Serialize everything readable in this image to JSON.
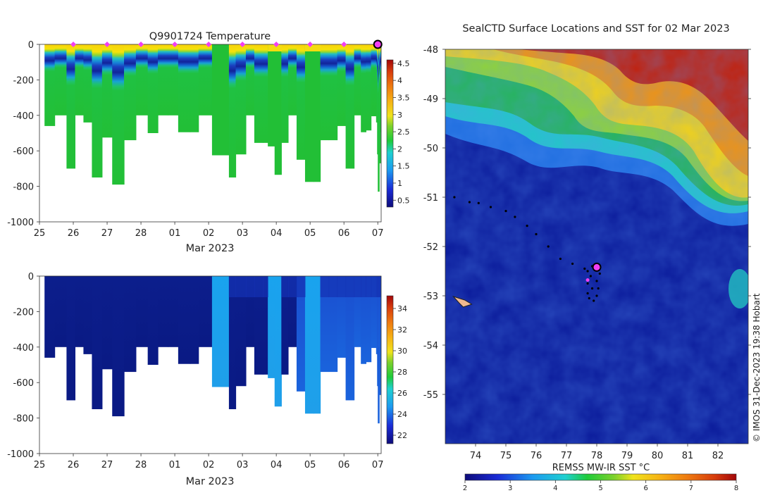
{
  "chart_data": [
    {
      "type": "heatmap",
      "panel": "top-left",
      "title": "Q9901724  Temperature",
      "xlabel": "Mar 2023",
      "ylabel": "",
      "x_tick_labels": [
        "25",
        "26",
        "27",
        "28",
        "01",
        "02",
        "03",
        "04",
        "05",
        "06",
        "07"
      ],
      "x_tick_values": [
        25,
        26,
        27,
        28,
        29,
        30,
        31,
        32,
        33,
        34,
        35
      ],
      "xlim": [
        25,
        35.1
      ],
      "y_tick_values": [
        0,
        -200,
        -400,
        -600,
        -800,
        -1000
      ],
      "ylim": [
        -1000,
        0
      ],
      "colorbar_ticks": [
        "0.5",
        "1",
        "1.5",
        "2",
        "2.5",
        "3",
        "3.5",
        "4",
        "4.5"
      ],
      "colorbar_range": [
        0.3,
        4.6
      ],
      "surface_markers": [
        26,
        27,
        28,
        29,
        30,
        31,
        32,
        33,
        34
      ],
      "latest_marker": 35,
      "profiles": [
        {
          "t": 25.15,
          "depth": 460,
          "type": "cold"
        },
        {
          "t": 25.45,
          "depth": 400,
          "type": "cold"
        },
        {
          "t": 25.8,
          "depth": 700,
          "type": "cold"
        },
        {
          "t": 26.05,
          "depth": 400,
          "type": "cold"
        },
        {
          "t": 26.3,
          "depth": 440,
          "type": "cold"
        },
        {
          "t": 26.55,
          "depth": 750,
          "type": "cold"
        },
        {
          "t": 26.85,
          "depth": 525,
          "type": "cold"
        },
        {
          "t": 27.15,
          "depth": 790,
          "type": "cold"
        },
        {
          "t": 27.5,
          "depth": 540,
          "type": "cold"
        },
        {
          "t": 27.85,
          "depth": 400,
          "type": "cold"
        },
        {
          "t": 28.2,
          "depth": 500,
          "type": "cold"
        },
        {
          "t": 28.5,
          "depth": 400,
          "type": "cold"
        },
        {
          "t": 28.8,
          "depth": 400,
          "type": "cold"
        },
        {
          "t": 29.1,
          "depth": 495,
          "type": "cold"
        },
        {
          "t": 29.45,
          "depth": 495,
          "type": "cold"
        },
        {
          "t": 29.7,
          "depth": 400,
          "type": "cold"
        },
        {
          "t": 30.1,
          "depth": 625,
          "type": "warm"
        },
        {
          "t": 30.4,
          "depth": 625,
          "type": "warm"
        },
        {
          "t": 30.6,
          "depth": 750,
          "type": "cold"
        },
        {
          "t": 30.8,
          "depth": 620,
          "type": "cold"
        },
        {
          "t": 31.1,
          "depth": 400,
          "type": "cold"
        },
        {
          "t": 31.35,
          "depth": 555,
          "type": "cold"
        },
        {
          "t": 31.6,
          "depth": 555,
          "type": "cold"
        },
        {
          "t": 31.75,
          "depth": 575,
          "type": "warm"
        },
        {
          "t": 31.95,
          "depth": 735,
          "type": "warm"
        },
        {
          "t": 32.15,
          "depth": 555,
          "type": "cold"
        },
        {
          "t": 32.35,
          "depth": 400,
          "type": "cold"
        },
        {
          "t": 32.6,
          "depth": 650,
          "type": "cold"
        },
        {
          "t": 32.85,
          "depth": 775,
          "type": "warm"
        },
        {
          "t": 33.1,
          "depth": 775,
          "type": "warm"
        },
        {
          "t": 33.3,
          "depth": 540,
          "type": "cold"
        },
        {
          "t": 33.55,
          "depth": 540,
          "type": "cold"
        },
        {
          "t": 33.8,
          "depth": 460,
          "type": "cold"
        },
        {
          "t": 34.05,
          "depth": 700,
          "type": "cold"
        },
        {
          "t": 34.3,
          "depth": 400,
          "type": "cold"
        },
        {
          "t": 34.5,
          "depth": 495,
          "type": "cold"
        },
        {
          "t": 34.65,
          "depth": 485,
          "type": "cold"
        },
        {
          "t": 34.8,
          "depth": 405,
          "type": "cold"
        },
        {
          "t": 34.95,
          "depth": 440,
          "type": "cold"
        },
        {
          "t": 34.98,
          "depth": 620,
          "type": "cold"
        },
        {
          "t": 35.0,
          "depth": 830,
          "type": "cold"
        },
        {
          "t": 35.02,
          "depth": 400,
          "type": "cold"
        },
        {
          "t": 35.04,
          "depth": 670,
          "type": "cold"
        },
        {
          "t": 35.06,
          "depth": 495,
          "type": "cold"
        }
      ]
    },
    {
      "type": "heatmap",
      "panel": "bottom-left",
      "title": "",
      "xlabel": "Mar 2023",
      "ylabel": "",
      "x_tick_labels": [
        "25",
        "26",
        "27",
        "28",
        "01",
        "02",
        "03",
        "04",
        "05",
        "06",
        "07"
      ],
      "x_tick_values": [
        25,
        26,
        27,
        28,
        29,
        30,
        31,
        32,
        33,
        34,
        35
      ],
      "xlim": [
        25,
        35.1
      ],
      "y_tick_values": [
        0,
        -200,
        -400,
        -600,
        -800,
        -1000
      ],
      "ylim": [
        -1000,
        0
      ],
      "colorbar_ticks": [
        "22",
        "24",
        "26",
        "28",
        "30",
        "32",
        "34"
      ],
      "colorbar_range": [
        21.2,
        35.2
      ]
    },
    {
      "type": "heatmap",
      "panel": "right-map",
      "title": "SealCTD Surface Locations and SST for 02 Mar 2023",
      "xlabel": "REMSS MW-IR SST °C",
      "x_tick_values": [
        74,
        75,
        76,
        77,
        78,
        79,
        80,
        81,
        82
      ],
      "x_tick_labels": [
        "74",
        "75",
        "76",
        "77",
        "78",
        "79",
        "80",
        "81",
        "82"
      ],
      "xlim": [
        73,
        83
      ],
      "y_tick_values": [
        -48,
        -49,
        -50,
        -51,
        -52,
        -53,
        -54,
        -55
      ],
      "y_tick_labels": [
        "-48",
        "-49",
        "-50",
        "-51",
        "-52",
        "-53",
        "-54",
        "-55"
      ],
      "ylim": [
        -56,
        -48
      ],
      "colorbar_ticks": [
        "2",
        "3",
        "4",
        "5",
        "6",
        "7",
        "8"
      ],
      "colorbar_range": [
        2,
        8
      ],
      "track": [
        [
          73.3,
          -51.0
        ],
        [
          73.8,
          -51.1
        ],
        [
          74.1,
          -51.12
        ],
        [
          74.5,
          -51.2
        ],
        [
          75.0,
          -51.28
        ],
        [
          75.3,
          -51.4
        ],
        [
          75.7,
          -51.58
        ],
        [
          76.0,
          -51.75
        ],
        [
          76.4,
          -52.0
        ],
        [
          76.8,
          -52.25
        ],
        [
          77.2,
          -52.35
        ],
        [
          77.6,
          -52.45
        ],
        [
          77.9,
          -52.42
        ],
        [
          77.7,
          -52.5
        ],
        [
          77.8,
          -52.6
        ],
        [
          77.7,
          -52.75
        ],
        [
          77.85,
          -52.85
        ],
        [
          77.7,
          -52.95
        ],
        [
          77.75,
          -53.05
        ],
        [
          77.9,
          -53.1
        ],
        [
          78.0,
          -53.0
        ],
        [
          78.05,
          -52.85
        ],
        [
          78.0,
          -52.7
        ],
        [
          78.1,
          -52.55
        ],
        [
          77.95,
          -52.45
        ],
        [
          77.85,
          -52.4
        ]
      ],
      "track_highlight": [
        77.7,
        -52.68
      ],
      "latest_position": [
        78.0,
        -52.42
      ],
      "island": [
        73.5,
        -53.1
      ]
    }
  ],
  "credit": "© IMOS 31-Dec-2023 19:38 Hobart"
}
